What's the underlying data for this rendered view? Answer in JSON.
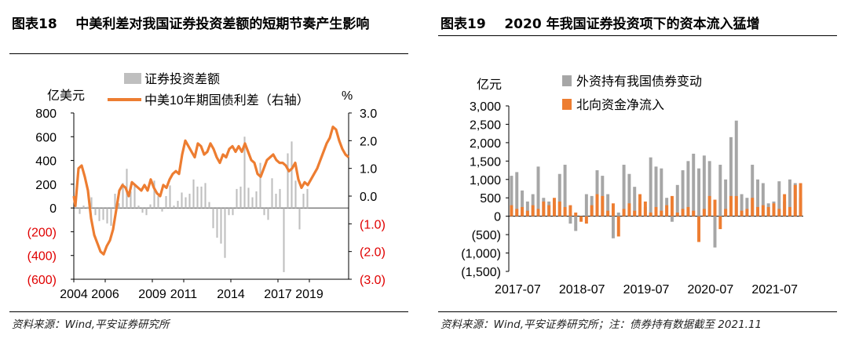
{
  "left_panel": {
    "title": "图表18    中美利差对我国证券投资差额的短期节奏产生影响",
    "source": "资料来源：Wind,平安证券研究所"
  },
  "right_panel": {
    "title": "图表19    2020 年我国证券投资项下的资本流入猛增",
    "source": "资料来源：Wind,平安证券研究所；注：债券持有数据截至 2021.11"
  },
  "chart_data": [
    {
      "type": "bar",
      "title": "中美利差对我国证券投资差额的短期节奏产生影响",
      "ylabel": "亿美元",
      "y2label": "%",
      "ylim": [
        -600,
        800
      ],
      "y2lim": [
        -3.0,
        3.0
      ],
      "yticks": [
        800,
        600,
        400,
        200,
        0,
        -200,
        -400,
        -600
      ],
      "ytick_labels": [
        "800",
        "600",
        "400",
        "200",
        "0",
        "(200)",
        "(400)",
        "(600)"
      ],
      "y2ticks": [
        3.0,
        2.0,
        1.0,
        0.0,
        -1.0,
        -2.0,
        -3.0
      ],
      "y2tick_labels": [
        "3.0",
        "2.0",
        "1.0",
        "0.0",
        "(1.0)",
        "(2.0)",
        "(3.0)"
      ],
      "x_start_year": 2004,
      "x_end_year": 2021.5,
      "xtick_years": [
        2004,
        2006,
        2009,
        2011,
        2014,
        2017,
        2019
      ],
      "xtick_labels": [
        "2004",
        "2006",
        "2009",
        "2011",
        "2014",
        "2017",
        "2019"
      ],
      "series": [
        {
          "name": "证券投资差额",
          "kind": "bar",
          "color": "#bfbfbf",
          "start_year": 2004,
          "step": 0.25,
          "values": [
            30,
            -50,
            20,
            10,
            90,
            -60,
            -110,
            -100,
            -130,
            -150,
            120,
            40,
            210,
            330,
            140,
            200,
            20,
            -40,
            -60,
            30,
            230,
            100,
            -30,
            100,
            190,
            20,
            60,
            130,
            90,
            120,
            240,
            180,
            180,
            210,
            50,
            -170,
            -250,
            -300,
            -420,
            -60,
            -60,
            160,
            180,
            600,
            170,
            90,
            140,
            380,
            -60,
            -100,
            250,
            120,
            160,
            -540,
            460,
            560,
            230,
            -180,
            120,
            160
          ]
        },
        {
          "name": "中美10年期国债利差（右轴）",
          "kind": "line",
          "color": "#ed7d31",
          "axis": "right",
          "points": [
            [
              2004.0,
              0.0
            ],
            [
              2004.1,
              -0.35
            ],
            [
              2004.3,
              1.0
            ],
            [
              2004.5,
              1.1
            ],
            [
              2004.7,
              0.7
            ],
            [
              2004.9,
              0.2
            ],
            [
              2005.1,
              -0.8
            ],
            [
              2005.3,
              -1.4
            ],
            [
              2005.5,
              -1.7
            ],
            [
              2005.7,
              -2.0
            ],
            [
              2005.9,
              -2.1
            ],
            [
              2006.1,
              -1.8
            ],
            [
              2006.3,
              -1.6
            ],
            [
              2006.5,
              -1.2
            ],
            [
              2006.7,
              -0.5
            ],
            [
              2006.9,
              0.2
            ],
            [
              2007.1,
              0.4
            ],
            [
              2007.3,
              0.3
            ],
            [
              2007.5,
              0.0
            ],
            [
              2007.7,
              0.5
            ],
            [
              2007.9,
              0.4
            ],
            [
              2008.1,
              0.3
            ],
            [
              2008.3,
              0.2
            ],
            [
              2008.5,
              0.4
            ],
            [
              2008.7,
              0.2
            ],
            [
              2008.9,
              0.6
            ],
            [
              2009.1,
              0.3
            ],
            [
              2009.3,
              0.1
            ],
            [
              2009.5,
              0.0
            ],
            [
              2009.7,
              0.4
            ],
            [
              2009.9,
              0.3
            ],
            [
              2010.1,
              0.6
            ],
            [
              2010.3,
              0.8
            ],
            [
              2010.5,
              0.9
            ],
            [
              2010.7,
              0.8
            ],
            [
              2010.9,
              1.5
            ],
            [
              2011.1,
              2.0
            ],
            [
              2011.3,
              1.8
            ],
            [
              2011.5,
              1.6
            ],
            [
              2011.7,
              1.4
            ],
            [
              2011.9,
              1.9
            ],
            [
              2012.1,
              1.8
            ],
            [
              2012.3,
              1.5
            ],
            [
              2012.5,
              1.6
            ],
            [
              2012.7,
              1.9
            ],
            [
              2012.9,
              1.7
            ],
            [
              2013.1,
              1.4
            ],
            [
              2013.3,
              1.2
            ],
            [
              2013.5,
              1.5
            ],
            [
              2013.7,
              1.4
            ],
            [
              2013.9,
              1.7
            ],
            [
              2014.1,
              1.8
            ],
            [
              2014.3,
              1.6
            ],
            [
              2014.5,
              1.8
            ],
            [
              2014.7,
              1.6
            ],
            [
              2014.9,
              1.9
            ],
            [
              2015.1,
              1.6
            ],
            [
              2015.3,
              1.3
            ],
            [
              2015.5,
              1.2
            ],
            [
              2015.7,
              0.8
            ],
            [
              2015.9,
              0.7
            ],
            [
              2016.1,
              1.0
            ],
            [
              2016.3,
              1.3
            ],
            [
              2016.5,
              1.4
            ],
            [
              2016.7,
              1.5
            ],
            [
              2016.9,
              1.3
            ],
            [
              2017.1,
              1.2
            ],
            [
              2017.3,
              1.2
            ],
            [
              2017.5,
              1.1
            ],
            [
              2017.7,
              0.9
            ],
            [
              2017.9,
              1.0
            ],
            [
              2018.1,
              1.2
            ],
            [
              2018.3,
              0.6
            ],
            [
              2018.5,
              0.3
            ],
            [
              2018.7,
              0.5
            ],
            [
              2018.9,
              0.4
            ],
            [
              2019.1,
              0.6
            ],
            [
              2019.3,
              0.8
            ],
            [
              2019.5,
              1.0
            ],
            [
              2019.7,
              1.3
            ],
            [
              2019.9,
              1.6
            ],
            [
              2020.1,
              1.9
            ],
            [
              2020.3,
              2.1
            ],
            [
              2020.5,
              2.5
            ],
            [
              2020.7,
              2.4
            ],
            [
              2020.9,
              2.0
            ],
            [
              2021.1,
              1.7
            ],
            [
              2021.3,
              1.5
            ],
            [
              2021.5,
              1.4
            ]
          ]
        }
      ]
    },
    {
      "type": "bar",
      "title": "2020 年我国证券投资项下的资本流入猛增",
      "ylabel": "亿元",
      "ylim": [
        -1500,
        3000
      ],
      "yticks": [
        3000,
        2500,
        2000,
        1500,
        1000,
        500,
        0,
        -500,
        -1000,
        -1500
      ],
      "ytick_labels": [
        "3,000",
        "2,500",
        "2,000",
        "1,500",
        "1,000",
        "500",
        "0",
        "(500)",
        "(1,000)",
        "(1,500)"
      ],
      "xtick_labels": [
        "2017-07",
        "2018-07",
        "2019-07",
        "2020-07",
        "2021-07"
      ],
      "xtick_index": [
        0,
        12,
        24,
        36,
        48
      ],
      "series": [
        {
          "name": "外资持有我国债券变动",
          "kind": "bar",
          "color": "#a6a6a6",
          "values": [
            1100,
            1200,
            700,
            400,
            600,
            1350,
            500,
            400,
            300,
            1150,
            1400,
            -200,
            -400,
            -100,
            600,
            550,
            1250,
            1100,
            600,
            -600,
            100,
            1400,
            1150,
            800,
            350,
            250,
            1600,
            1350,
            1300,
            500,
            -150,
            850,
            1250,
            1500,
            1700,
            1300,
            1650,
            1500,
            -850,
            1400,
            1000,
            2150,
            2600,
            600,
            500,
            1400,
            1000,
            900,
            350,
            400,
            950,
            400,
            1000,
            900,
            500
          ]
        },
        {
          "name": "北向资金净流入",
          "kind": "bar",
          "color": "#ed7d31",
          "values": [
            300,
            200,
            250,
            150,
            300,
            200,
            400,
            300,
            500,
            400,
            250,
            300,
            100,
            -150,
            -200,
            300,
            600,
            550,
            150,
            350,
            -550,
            200,
            350,
            150,
            600,
            400,
            100,
            250,
            150,
            300,
            550,
            100,
            200,
            250,
            150,
            -700,
            200,
            550,
            450,
            -350,
            200,
            550,
            550,
            150,
            200,
            500,
            250,
            300,
            250,
            350,
            200,
            600,
            250,
            850,
            900
          ]
        }
      ]
    }
  ]
}
